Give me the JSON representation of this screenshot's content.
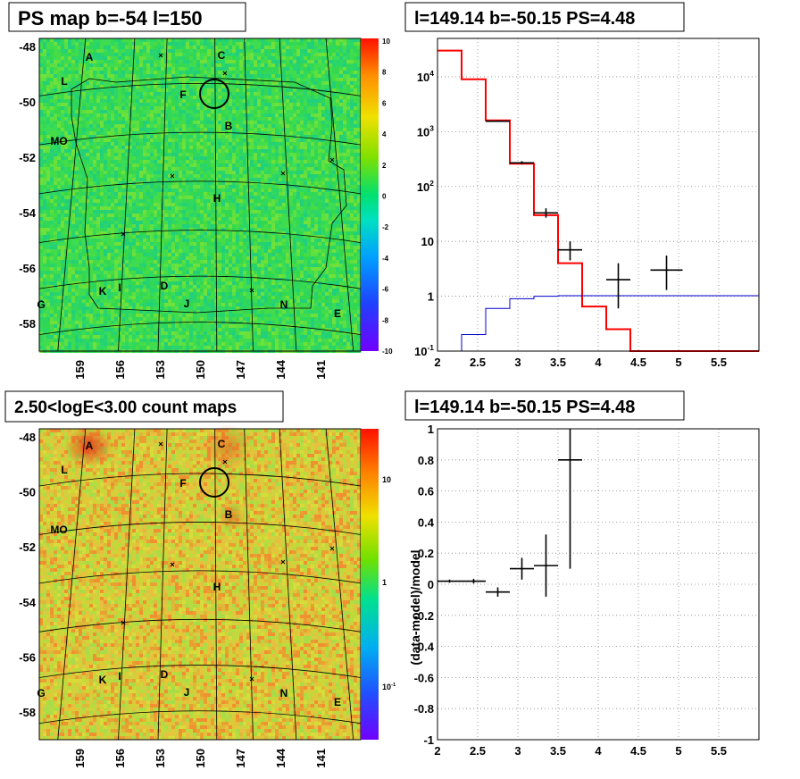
{
  "panels": {
    "top_left": {
      "title": "PS map b=-54 l=150"
    },
    "top_right": {
      "title": "l=149.14 b=-50.15 PS=4.48"
    },
    "bottom_left": {
      "title": "2.50<logE<3.00 count maps"
    },
    "bottom_right": {
      "title": "l=149.14 b=-50.15 PS=4.48"
    }
  },
  "map": {
    "lat_labels": [
      "-48",
      "-50",
      "-52",
      "-54",
      "-56",
      "-58"
    ],
    "lon_labels": [
      "159",
      "156",
      "153",
      "150",
      "147",
      "144",
      "141"
    ],
    "region_labels": [
      "A",
      "C",
      "L",
      "F",
      "B",
      "MO",
      "H",
      "K",
      "I",
      "D",
      "J",
      "N",
      "E",
      "G"
    ],
    "colors": {
      "green": "#2ad85a",
      "orange": "#e07a1e"
    }
  },
  "chart_data": [
    {
      "type": "heatmap",
      "title": "PS map b=-54 l=150",
      "y_ticks": [
        "-48",
        "-50",
        "-52",
        "-54",
        "-56",
        "-58"
      ],
      "x_ticks": [
        "159",
        "156",
        "153",
        "150",
        "147",
        "144",
        "141"
      ],
      "colorbar": {
        "min": -10,
        "max": 10,
        "ticks": [
          "10",
          "8",
          "6",
          "4",
          "2",
          "0",
          "-2",
          "-4",
          "-6",
          "-8",
          "-10"
        ]
      }
    },
    {
      "type": "line",
      "title": "l=149.14 b=-50.15 PS=4.48",
      "log_y": true,
      "xlim": [
        2,
        6
      ],
      "ylim": [
        0.1,
        50000
      ],
      "x_ticks": [
        "2",
        "2.5",
        "3",
        "3.5",
        "4",
        "4.5",
        "5",
        "5.5"
      ],
      "y_ticks": [
        {
          "base": "10",
          "exp": "4"
        },
        {
          "base": "10",
          "exp": "3"
        },
        {
          "base": "10",
          "exp": "2"
        },
        {
          "base": "10",
          "exp": ""
        },
        {
          "base": "1",
          "exp": ""
        },
        {
          "base": "10",
          "exp": "-1"
        }
      ],
      "series": [
        {
          "color": "#ff0000",
          "edges": [
            2,
            2.3,
            2.6,
            2.9,
            3.2,
            3.5,
            3.8,
            4.1,
            4.4,
            6
          ],
          "values": [
            30000,
            9000,
            1600,
            260,
            30,
            4,
            0.65,
            0.25,
            0.1
          ]
        },
        {
          "color": "#0000cc",
          "edges": [
            2,
            2.3,
            2.6,
            2.9,
            3.2,
            3.5,
            3.8,
            4.1,
            4.4,
            6
          ],
          "values": [
            0.05,
            0.2,
            0.6,
            0.9,
            1.0,
            1.02,
            1.02,
            1.02,
            1.02
          ]
        },
        {
          "color": "#000000",
          "points": [
            {
              "x": 2.75,
              "y": 1550,
              "xerr": 0.15,
              "ylo": 1500,
              "yhi": 1600
            },
            {
              "x": 3.05,
              "y": 270,
              "xerr": 0.15,
              "ylo": 255,
              "yhi": 290
            },
            {
              "x": 3.35,
              "y": 33,
              "xerr": 0.15,
              "ylo": 27,
              "yhi": 40
            },
            {
              "x": 3.65,
              "y": 7,
              "xerr": 0.15,
              "ylo": 4.5,
              "yhi": 10
            },
            {
              "x": 4.25,
              "y": 2,
              "xerr": 0.15,
              "ylo": 0.6,
              "yhi": 4
            },
            {
              "x": 4.85,
              "y": 3,
              "xerr": 0.2,
              "ylo": 1.3,
              "yhi": 5.5
            }
          ]
        }
      ]
    },
    {
      "type": "heatmap",
      "title": "2.50<logE<3.00 count maps",
      "y_ticks": [
        "-48",
        "-50",
        "-52",
        "-54",
        "-56",
        "-58"
      ],
      "x_ticks": [
        "159",
        "156",
        "153",
        "150",
        "147",
        "144",
        "141"
      ],
      "colorbar": {
        "log": true,
        "ticks": [
          {
            "base": "10",
            "exp": ""
          },
          {
            "base": "1",
            "exp": ""
          },
          {
            "base": "10",
            "exp": "-1"
          }
        ]
      }
    },
    {
      "type": "scatter",
      "title": "l=149.14 b=-50.15 PS=4.48",
      "ylabel": "(data-model)/model",
      "xlim": [
        2,
        6
      ],
      "ylim": [
        -1,
        1
      ],
      "x_ticks": [
        "2",
        "2.5",
        "3",
        "3.5",
        "4",
        "4.5",
        "5",
        "5.5"
      ],
      "y_ticks": [
        "1",
        "0.8",
        "0.6",
        "0.4",
        "0.2",
        "0",
        "-0.2",
        "-0.4",
        "-0.6",
        "-0.8",
        "-1"
      ],
      "points": [
        {
          "x": 2.15,
          "y": 0.02,
          "xerr": 0.15,
          "yerr": 0.01
        },
        {
          "x": 2.45,
          "y": 0.02,
          "xerr": 0.15,
          "yerr": 0.015
        },
        {
          "x": 2.75,
          "y": -0.05,
          "xerr": 0.15,
          "yerr": 0.03
        },
        {
          "x": 3.05,
          "y": 0.1,
          "xerr": 0.15,
          "yerr": 0.07
        },
        {
          "x": 3.35,
          "y": 0.12,
          "xerr": 0.15,
          "yerr": 0.2
        },
        {
          "x": 3.65,
          "y": 0.8,
          "xerr": 0.15,
          "yerr": 0.7
        }
      ]
    }
  ]
}
